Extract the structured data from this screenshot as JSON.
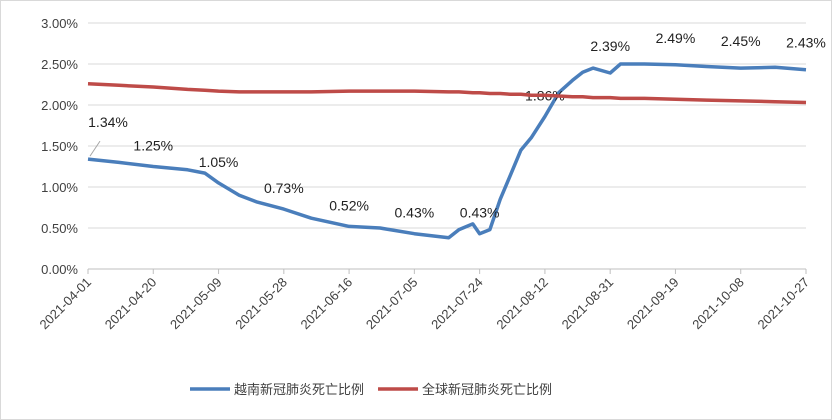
{
  "chart_data": {
    "type": "line",
    "x": [
      "2021-04-01",
      "2021-04-10",
      "2021-04-20",
      "2021-04-30",
      "2021-05-05",
      "2021-05-09",
      "2021-05-15",
      "2021-05-20",
      "2021-05-28",
      "2021-06-05",
      "2021-06-16",
      "2021-06-25",
      "2021-07-05",
      "2021-07-15",
      "2021-07-18",
      "2021-07-22",
      "2021-07-24",
      "2021-07-27",
      "2021-07-30",
      "2021-08-02",
      "2021-08-05",
      "2021-08-08",
      "2021-08-12",
      "2021-08-16",
      "2021-08-20",
      "2021-08-23",
      "2021-08-26",
      "2021-08-31",
      "2021-09-03",
      "2021-09-10",
      "2021-09-19",
      "2021-09-28",
      "2021-10-08",
      "2021-10-18",
      "2021-10-27"
    ],
    "series": [
      {
        "name": "越南新冠肺炎死亡比例",
        "color": "#4a7ebb",
        "values": [
          1.34,
          1.3,
          1.25,
          1.21,
          1.17,
          1.05,
          0.9,
          0.82,
          0.73,
          0.62,
          0.52,
          0.5,
          0.43,
          0.38,
          0.48,
          0.55,
          0.43,
          0.48,
          0.85,
          1.15,
          1.45,
          1.6,
          1.86,
          2.15,
          2.3,
          2.4,
          2.45,
          2.39,
          2.5,
          2.5,
          2.49,
          2.47,
          2.45,
          2.46,
          2.43
        ],
        "value_labels": [
          "1.34%",
          null,
          "1.25%",
          null,
          null,
          "1.05%",
          null,
          null,
          "0.73%",
          null,
          "0.52%",
          null,
          "0.43%",
          null,
          null,
          null,
          "0.43%",
          null,
          null,
          null,
          null,
          null,
          "1.86%",
          null,
          null,
          null,
          null,
          "2.39%",
          null,
          null,
          "2.49%",
          null,
          "2.45%",
          null,
          "2.43%"
        ]
      },
      {
        "name": "全球新冠肺炎死亡比例",
        "color": "#be4b48",
        "values": [
          2.26,
          2.24,
          2.22,
          2.19,
          2.18,
          2.17,
          2.16,
          2.16,
          2.16,
          2.16,
          2.17,
          2.17,
          2.17,
          2.16,
          2.16,
          2.15,
          2.15,
          2.14,
          2.14,
          2.13,
          2.13,
          2.12,
          2.12,
          2.11,
          2.1,
          2.1,
          2.09,
          2.09,
          2.08,
          2.08,
          2.07,
          2.06,
          2.05,
          2.04,
          2.03
        ]
      }
    ],
    "xlim": [
      "2021-04-01",
      "2021-10-27"
    ],
    "xticks": [
      "2021-04-01",
      "2021-04-20",
      "2021-05-09",
      "2021-05-28",
      "2021-06-16",
      "2021-07-05",
      "2021-07-24",
      "2021-08-12",
      "2021-08-31",
      "2021-09-19",
      "2021-10-08",
      "2021-10-27"
    ],
    "ylim": [
      0,
      3
    ],
    "yticks": [
      {
        "value": 0,
        "label": "0.00%"
      },
      {
        "value": 0.5,
        "label": "0.50%"
      },
      {
        "value": 1,
        "label": "1.00%"
      },
      {
        "value": 1.5,
        "label": "1.50%"
      },
      {
        "value": 2,
        "label": "2.00%"
      },
      {
        "value": 2.5,
        "label": "2.50%"
      },
      {
        "value": 3,
        "label": "3.00%"
      }
    ],
    "grid": true,
    "legend": "bottom"
  }
}
